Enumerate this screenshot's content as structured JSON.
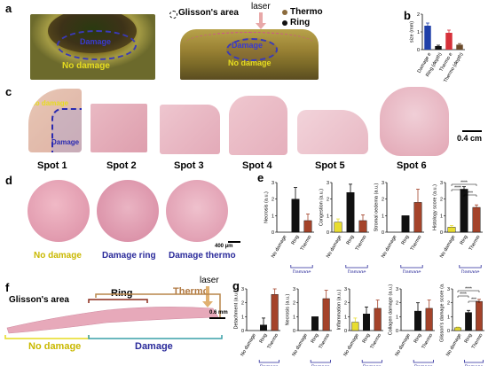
{
  "panels": [
    "a",
    "b",
    "c",
    "d",
    "e",
    "f",
    "g"
  ],
  "panel_a": {
    "left_photo": {
      "damage_label": "Damage",
      "no_damage_label": "No damage"
    },
    "right_photo": {
      "damage_label": "Damage",
      "no_damage_label": "No damage"
    },
    "glisson_label": "Glisson's area",
    "laser_label": "laser",
    "legend": [
      {
        "name": "Thermo",
        "color": "#8b6b3c"
      },
      {
        "name": "Ring",
        "color": "#111111"
      }
    ]
  },
  "panel_c": {
    "spots": [
      "Spot 1",
      "Spot 2",
      "Spot 3",
      "Spot 4",
      "Spot 5",
      "Spot 6"
    ],
    "spot1_no_damage": "No damage",
    "spot1_damage": "Damage",
    "scale_bar": "0.4 cm"
  },
  "panel_d": {
    "labels": [
      {
        "text": "No damage",
        "color": "#c9b800"
      },
      {
        "text": "Damage ring",
        "color": "#2a2a9a"
      },
      {
        "text": "Damage thermo",
        "color": "#2a2a9a"
      }
    ],
    "scale_bar": "400 µm"
  },
  "panel_f": {
    "glisson_label": "Glisson's area",
    "ring_label": "Ring",
    "thermo_label": "Thermo",
    "laser_label": "laser",
    "no_damage_label": "No damage",
    "damage_label": "Damage",
    "scale_bar": "0.6 mm"
  },
  "colors": {
    "no_damage": "#e8dd30",
    "ring": "#111111",
    "thermo": "#a4432a",
    "damage_ring_b": "#1f3fa8",
    "damage_thermo_b": "#d6313a"
  },
  "chart_data": [
    {
      "panel": "b",
      "type": "bar",
      "ylabel": "size (mm)",
      "ylim": [
        0,
        2
      ],
      "categories": [
        "Damage e",
        "Ring (depth)",
        "Thermo e",
        "Thermo (depth)"
      ],
      "values": [
        1.35,
        0.2,
        0.95,
        0.28
      ],
      "errors": [
        0.15,
        0.05,
        0.15,
        0.06
      ],
      "colors": [
        "#1f3fa8",
        "#111111",
        "#d6313a",
        "#6b4a2a"
      ]
    },
    {
      "panel": "e1",
      "type": "bar",
      "ylabel": "Necrosis (a.u.)",
      "ylim": [
        0,
        3
      ],
      "yticks": [
        0,
        1,
        2,
        3
      ],
      "categories": [
        "No damage",
        "Ring",
        "Thermo"
      ],
      "values": [
        0,
        2,
        0.7
      ],
      "errors": [
        0,
        0.7,
        0.4
      ],
      "group_label": "Damage"
    },
    {
      "panel": "e2",
      "type": "bar",
      "ylabel": "Congestion (a.u.)",
      "ylim": [
        0,
        3
      ],
      "yticks": [
        0,
        1,
        2,
        3
      ],
      "categories": [
        "No damage",
        "Ring",
        "Thermo"
      ],
      "values": [
        0.6,
        2.4,
        0.7
      ],
      "errors": [
        0.2,
        0.5,
        0.35
      ],
      "group_label": "Damage"
    },
    {
      "panel": "e3",
      "type": "bar",
      "ylabel": "Stromal oedema (a.u.)",
      "ylim": [
        0,
        3
      ],
      "yticks": [
        0,
        1,
        2,
        3
      ],
      "categories": [
        "No damage",
        "Ring",
        "Thermo"
      ],
      "values": [
        0,
        1,
        1.8
      ],
      "errors": [
        0,
        0,
        0.8
      ],
      "group_label": "Damage"
    },
    {
      "panel": "e4",
      "type": "bar",
      "ylabel": "Histology score (a.u.)",
      "ylim": [
        0,
        3
      ],
      "yticks": [
        0,
        1,
        2,
        3
      ],
      "categories": [
        "No damage",
        "Ring",
        "Thermo"
      ],
      "values": [
        0.3,
        2.6,
        1.5
      ],
      "errors": [
        0.1,
        0.15,
        0.15
      ],
      "group_label": "Damage",
      "significance": [
        "****",
        "****",
        "***"
      ]
    },
    {
      "panel": "g1",
      "type": "bar",
      "ylabel": "Detachment (a.u.)",
      "ylim": [
        0,
        3
      ],
      "yticks": [
        0,
        1,
        2,
        3
      ],
      "categories": [
        "No damage",
        "Ring",
        "Thermo"
      ],
      "values": [
        0,
        0.4,
        2.6
      ],
      "errors": [
        0,
        0.5,
        0.4
      ],
      "group_label": "Damage"
    },
    {
      "panel": "g2",
      "type": "bar",
      "ylabel": "Necrosis (a.u.)",
      "ylim": [
        0,
        3
      ],
      "yticks": [
        0,
        1,
        2,
        3
      ],
      "categories": [
        "No damage",
        "Ring",
        "Thermo"
      ],
      "values": [
        0,
        1,
        2.3
      ],
      "errors": [
        0,
        0,
        0.6
      ],
      "group_label": "Damage"
    },
    {
      "panel": "g3",
      "type": "bar",
      "ylabel": "Inflammation (a.u.)",
      "ylim": [
        0,
        3
      ],
      "yticks": [
        0,
        1,
        2,
        3
      ],
      "categories": [
        "No damage",
        "Ring",
        "Thermo"
      ],
      "values": [
        0.6,
        1.2,
        1.6
      ],
      "errors": [
        0.3,
        0.5,
        0.6
      ],
      "group_label": "Damage"
    },
    {
      "panel": "g4",
      "type": "bar",
      "ylabel": "Collagen damage (a.u.)",
      "ylim": [
        0,
        3
      ],
      "yticks": [
        0,
        1,
        2,
        3
      ],
      "categories": [
        "No damage",
        "Ring",
        "Thermo"
      ],
      "values": [
        0,
        1.4,
        1.6
      ],
      "errors": [
        0,
        0.6,
        0.6
      ],
      "group_label": "Damage"
    },
    {
      "panel": "g5",
      "type": "bar",
      "ylabel": "Glisson's damage score (a.u.)",
      "ylim": [
        0,
        3
      ],
      "yticks": [
        0,
        1,
        2,
        3
      ],
      "categories": [
        "No damage",
        "Ring",
        "Thermo"
      ],
      "values": [
        0.2,
        1.3,
        2.1
      ],
      "errors": [
        0.05,
        0.15,
        0.15
      ],
      "group_label": "Damage",
      "significance": [
        "****",
        "****",
        "***"
      ]
    }
  ]
}
